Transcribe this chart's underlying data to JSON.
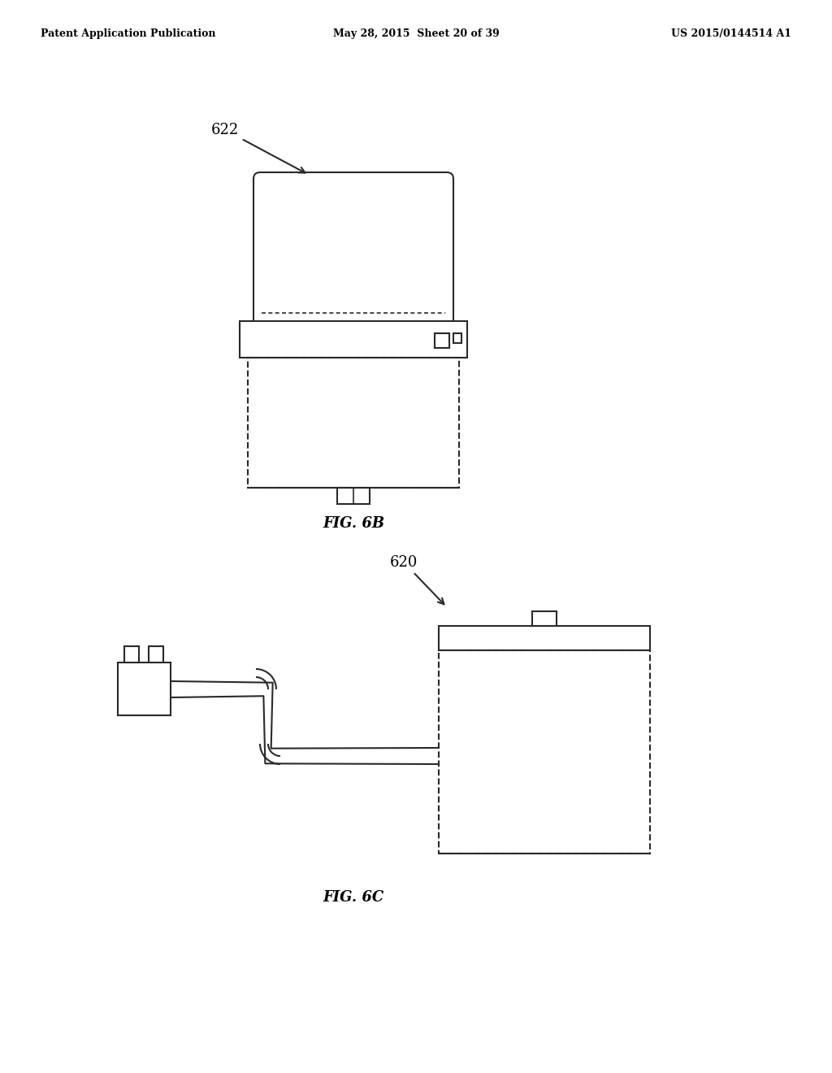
{
  "bg_color": "#ffffff",
  "line_color": "#2a2a2a",
  "line_width": 1.5,
  "header_left": "Patent Application Publication",
  "header_mid": "May 28, 2015  Sheet 20 of 39",
  "header_right": "US 2015/0144514 A1",
  "fig6b_label": "FIG. 6B",
  "fig6c_label": "FIG. 6C",
  "label_622": "622",
  "label_620": "620"
}
